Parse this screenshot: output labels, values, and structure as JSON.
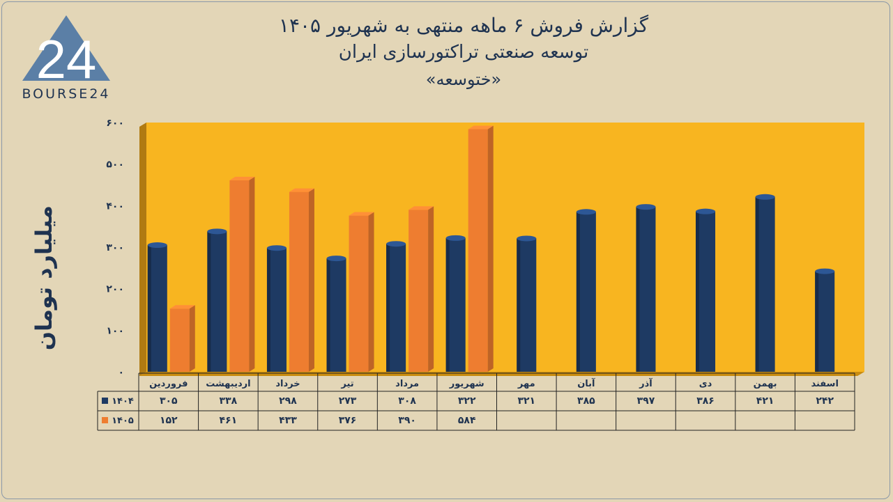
{
  "header": {
    "title_line1": "گزارش  فروش ۶ ماهه منتهی به شهریور ۱۴۰۵",
    "title_line2": "توسعه صنعتی تراکتورسازی ایران",
    "title_line3": "«ختوسعه»"
  },
  "logo": {
    "text": "BOURSE24",
    "mark": "24"
  },
  "colors": {
    "plot_bg": "#f8b520",
    "series_1404": "#1e3a63",
    "series_1405": "#ee7d30",
    "axis_text": "#1f3350"
  },
  "chart_data": {
    "type": "bar",
    "ylabel": "میلیارد تومان",
    "ylim": [
      0,
      600
    ],
    "yticks": [
      0,
      100,
      200,
      300,
      400,
      500,
      600
    ],
    "ytick_labels": [
      "۰",
      "۱۰۰",
      "۲۰۰",
      "۳۰۰",
      "۴۰۰",
      "۵۰۰",
      "۶۰۰"
    ],
    "categories": [
      "فروردین",
      "اردیبهشت",
      "خرداد",
      "تیر",
      "مرداد",
      "شهریور",
      "مهر",
      "آبان",
      "آذر",
      "دی",
      "بهمن",
      "اسفند"
    ],
    "series": [
      {
        "name": "۱۴۰۴",
        "color": "#1e3a63",
        "values": [
          305,
          338,
          298,
          273,
          308,
          322,
          321,
          385,
          397,
          386,
          421,
          242
        ],
        "labels": [
          "۳۰۵",
          "۳۳۸",
          "۲۹۸",
          "۲۷۳",
          "۳۰۸",
          "۳۲۲",
          "۳۲۱",
          "۳۸۵",
          "۳۹۷",
          "۳۸۶",
          "۴۲۱",
          "۲۴۲"
        ]
      },
      {
        "name": "۱۴۰۵",
        "color": "#ee7d30",
        "values": [
          152,
          461,
          433,
          376,
          390,
          584,
          null,
          null,
          null,
          null,
          null,
          null
        ],
        "labels": [
          "۱۵۲",
          "۴۶۱",
          "۴۳۳",
          "۳۷۶",
          "۳۹۰",
          "۵۸۴",
          "",
          "",
          "",
          "",
          "",
          ""
        ]
      }
    ],
    "grid": false,
    "legend": "table-left"
  }
}
